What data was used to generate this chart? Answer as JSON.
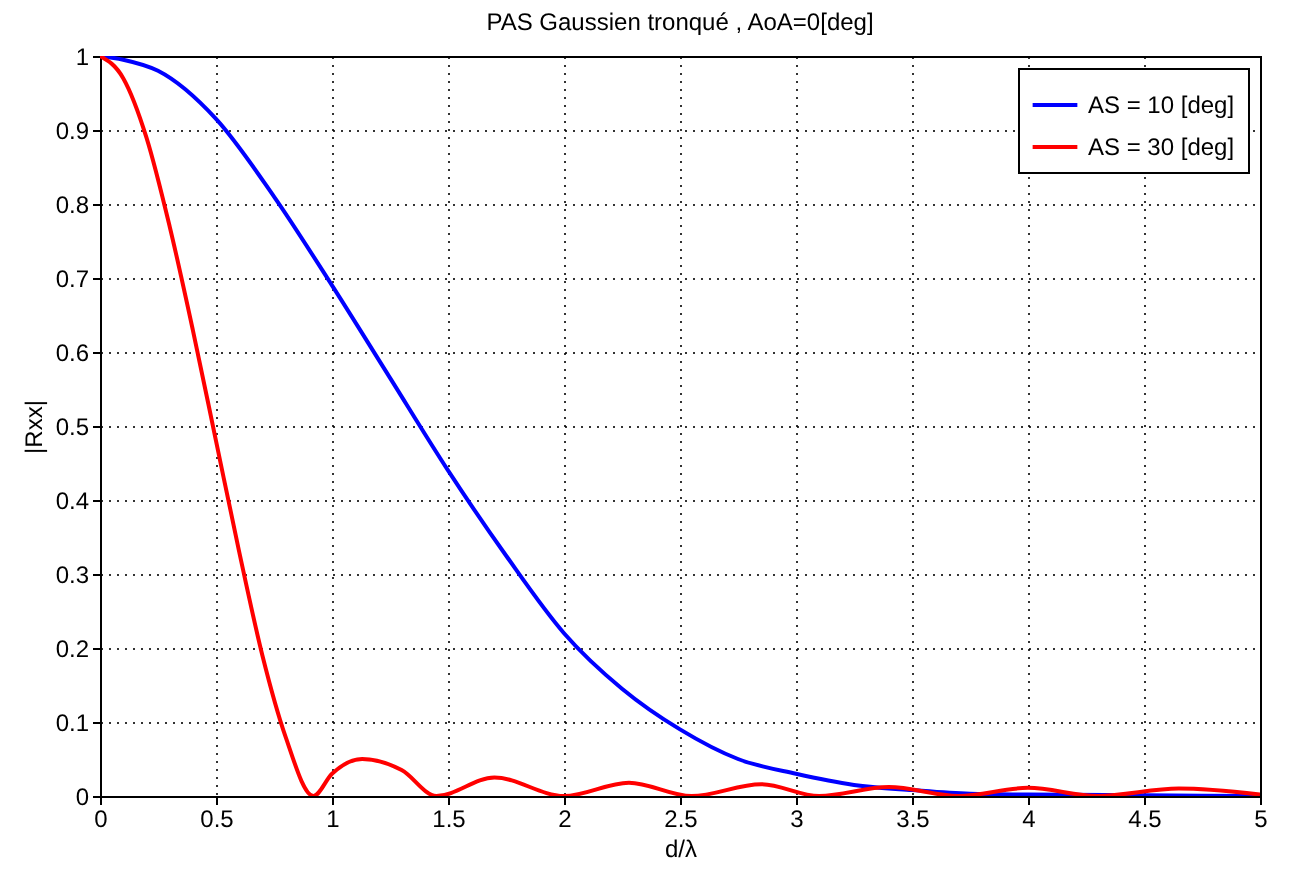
{
  "chart_data": {
    "type": "line",
    "title": "PAS Gaussien tronqué , AoA=0[deg]",
    "xlabel": "d/λ",
    "ylabel": "|Rxx|",
    "xlim": [
      0,
      5
    ],
    "xticks": [
      0,
      0.5,
      1,
      1.5,
      2,
      2.5,
      3,
      3.5,
      4,
      4.5,
      5
    ],
    "ylim": [
      0,
      1
    ],
    "yticks": [
      0,
      0.1,
      0.2,
      0.3,
      0.4,
      0.5,
      0.6,
      0.7,
      0.8,
      0.9,
      1
    ],
    "grid": true,
    "legend": "top right",
    "line_style": "solid",
    "series": [
      {
        "name": "AS = 10 [deg]",
        "color": "#0000ff",
        "x": [
          0,
          0.1,
          0.25,
          0.5,
          0.75,
          1,
          1.25,
          1.5,
          1.75,
          2,
          2.25,
          2.5,
          2.75,
          3,
          3.25,
          3.5,
          3.75,
          4,
          4.5,
          5
        ],
        "values": [
          1,
          0.995,
          0.98,
          0.915,
          0.81,
          0.69,
          0.565,
          0.44,
          0.325,
          0.22,
          0.145,
          0.09,
          0.05,
          0.03,
          0.015,
          0.008,
          0.003,
          0.002,
          0.001,
          0
        ]
      },
      {
        "name": "AS = 30 [deg]",
        "color": "#ff0000",
        "x": [
          0,
          0.1,
          0.2,
          0.3,
          0.4,
          0.5,
          0.6,
          0.7,
          0.8,
          0.92,
          1,
          1.13,
          1.3,
          1.45,
          1.7,
          2,
          2.28,
          2.55,
          2.85,
          3.1,
          3.4,
          3.7,
          4,
          4.3,
          4.65,
          5
        ],
        "values": [
          1,
          0.97,
          0.89,
          0.77,
          0.63,
          0.48,
          0.33,
          0.19,
          0.08,
          0,
          0.03,
          0.05,
          0.035,
          0,
          0.025,
          0,
          0.018,
          0,
          0.016,
          0,
          0.012,
          0,
          0.011,
          0,
          0.01,
          0.002
        ]
      }
    ]
  }
}
